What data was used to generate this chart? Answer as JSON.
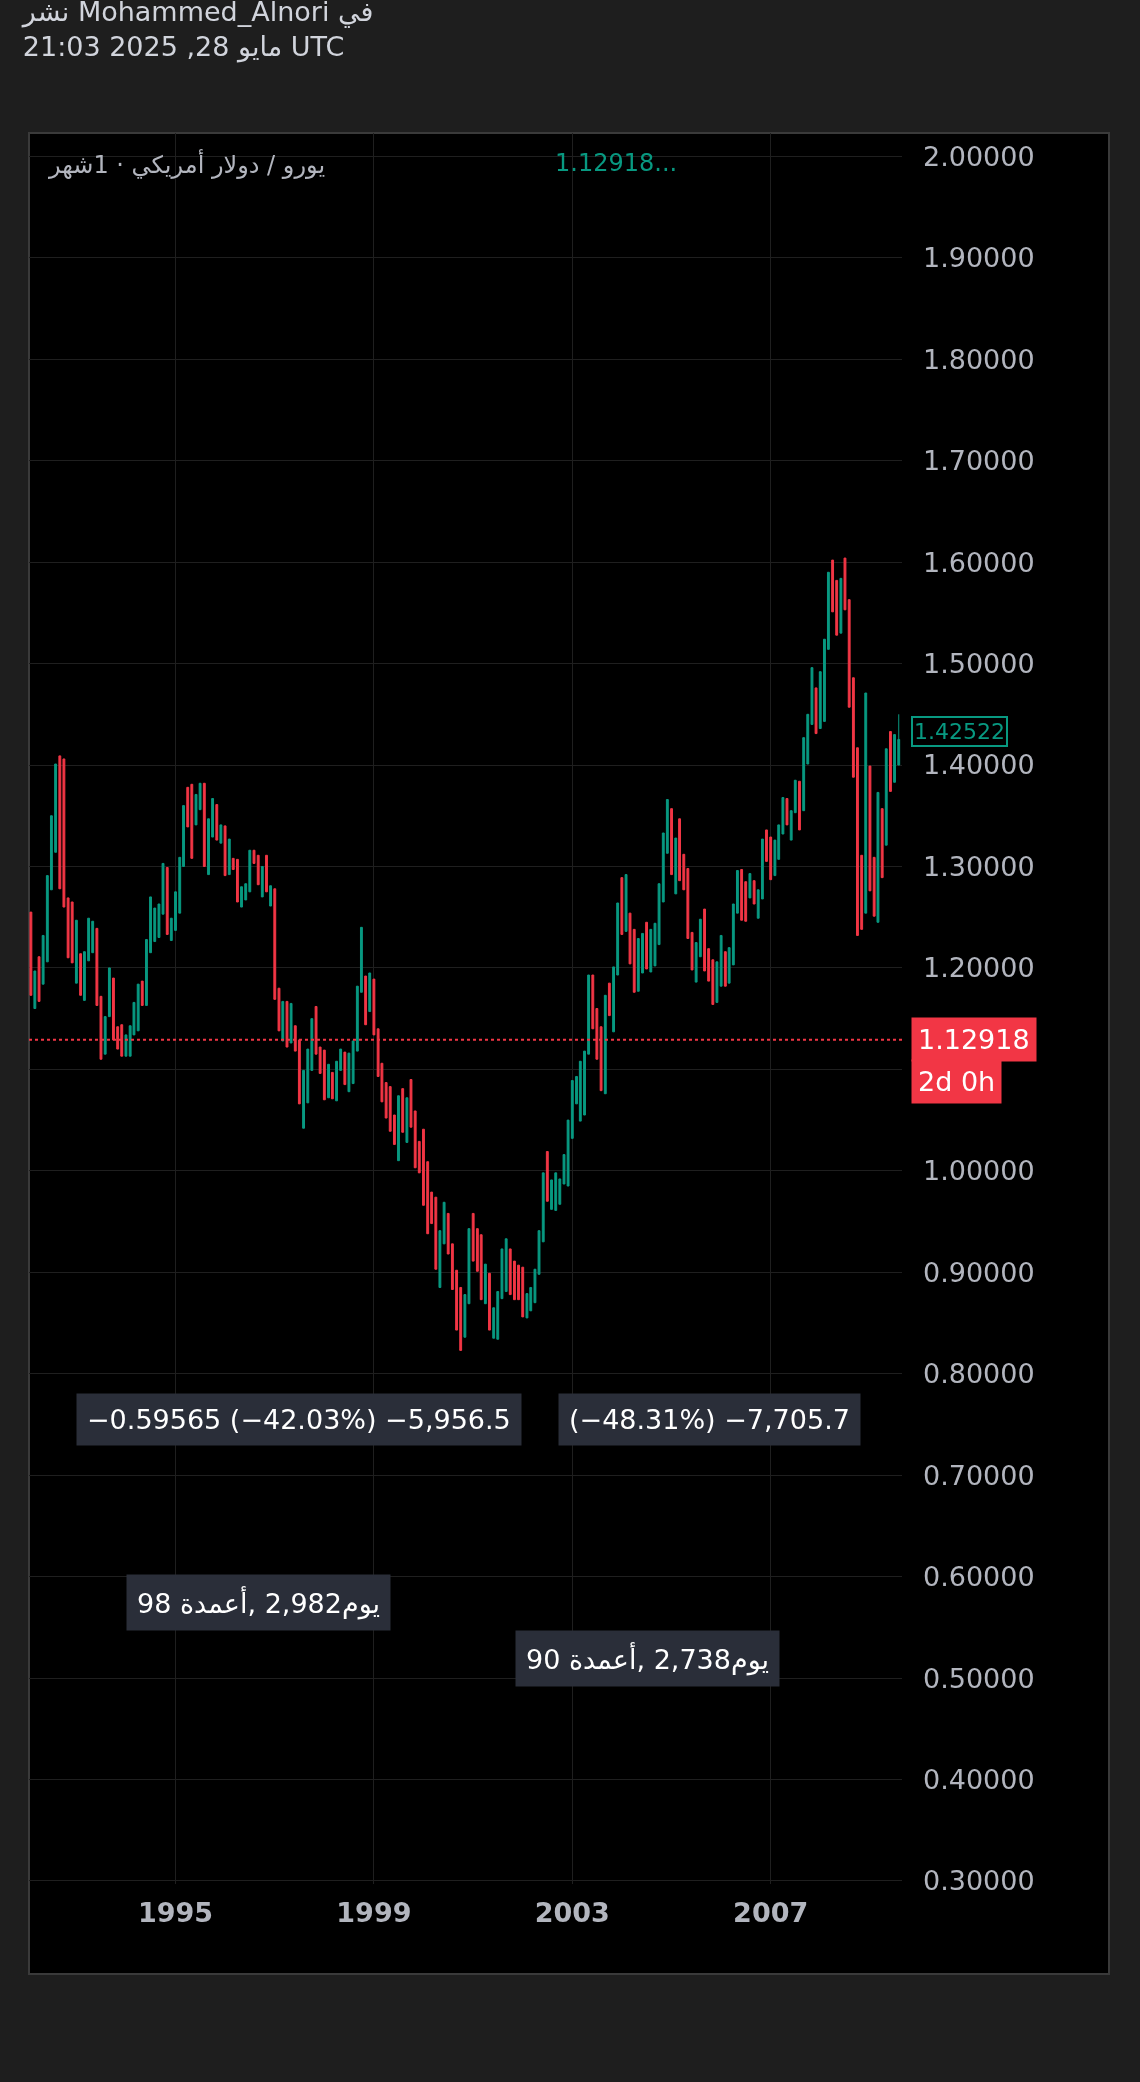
{
  "chart_data": {
    "type": "candlestick",
    "title": "نشر Mohammed_Alnori في",
    "subtitle": "21:03 2025 ,28 مايو UTC",
    "colors": [
      "#f23645",
      "#089981",
      "#f23645",
      "#089981",
      "#089981",
      "#089981",
      "#089981",
      "#f23645",
      "#f23645",
      "#f23645",
      "#f23645",
      "#089981",
      "#f23645",
      "#089981",
      "#089981",
      "#089981",
      "#f23645",
      "#f23645",
      "#089981",
      "#089981",
      "#f23645",
      "#f23645",
      "#f23645",
      "#089981",
      "#089981",
      "#089981",
      "#089981",
      "#f23645",
      "#089981",
      "#089981",
      "#089981",
      "#089981",
      "#089981",
      "#f23645",
      "#089981",
      "#089981",
      "#089981",
      "#089981",
      "#f23645",
      "#f23645",
      "#089981",
      "#089981",
      "#f23645",
      "#089981",
      "#089981",
      "#f23645",
      "#089981",
      "#f23645",
      "#089981",
      "#f23645",
      "#f23645",
      "#089981",
      "#089981",
      "#089981",
      "#f23645",
      "#f23645",
      "#089981",
      "#f23645",
      "#089981",
      "#f23645",
      "#f23645",
      "#089981",
      "#f23645",
      "#089981",
      "#f23645",
      "#f23645",
      "#089981",
      "#089981",
      "#089981",
      "#f23645",
      "#f23645",
      "#f23645",
      "#089981",
      "#f23645",
      "#089981",
      "#089981",
      "#f23645",
      "#089981",
      "#089981",
      "#089981",
      "#089981",
      "#f23645",
      "#089981",
      "#f23645",
      "#f23645",
      "#f23645",
      "#f23645",
      "#f23645",
      "#f23645",
      "#089981",
      "#f23645",
      "#089981",
      "#f23645",
      "#f23645",
      "#f23645",
      "#f23645",
      "#f23645",
      "#f23645",
      "#f23645",
      "#089981",
      "#089981",
      "#f23645",
      "#f23645",
      "#f23645",
      "#f23645",
      "#089981",
      "#089981",
      "#f23645",
      "#f23645",
      "#f23645",
      "#089981",
      "#f23645",
      "#089981",
      "#089981",
      "#089981",
      "#089981",
      "#f23645",
      "#f23645",
      "#f23645",
      "#f23645",
      "#089981",
      "#089981",
      "#089981",
      "#089981",
      "#089981",
      "#f23645",
      "#089981",
      "#089981",
      "#089981",
      "#089981",
      "#089981",
      "#089981",
      "#089981",
      "#089981",
      "#089981",
      "#089981",
      "#f23645",
      "#f23645",
      "#f23645",
      "#089981",
      "#f23645",
      "#089981",
      "#089981",
      "#f23645",
      "#089981",
      "#f23645",
      "#f23645",
      "#089981",
      "#089981",
      "#f23645",
      "#089981",
      "#089981",
      "#089981",
      "#089981",
      "#089981",
      "#f23645",
      "#089981",
      "#f23645",
      "#f23645",
      "#f23645",
      "#f23645",
      "#089981",
      "#089981",
      "#f23645",
      "#f23645",
      "#f23645",
      "#089981",
      "#089981",
      "#f23645",
      "#089981",
      "#089981",
      "#089981",
      "#f23645",
      "#f23645",
      "#089981",
      "#f23645",
      "#089981",
      "#089981",
      "#f23645",
      "#f23645",
      "#089981",
      "#089981",
      "#089981",
      "#f23645",
      "#089981",
      "#089981",
      "#f23645",
      "#089981",
      "#089981",
      "#089981",
      "#f23645",
      "#089981",
      "#089981",
      "#089981",
      "#f23645",
      "#f23645",
      "#089981",
      "#f23645",
      "#f23645",
      "#f23645",
      "#f23645",
      "#f23645",
      "#089981",
      "#f23645",
      "#f23645",
      "#089981",
      "#f23645",
      "#089981",
      "#f23645",
      "#089981",
      "#089981"
    ],
    "x": [
      "1992-02",
      "1992-03",
      "1992-04",
      "1992-05",
      "1992-06",
      "1992-07",
      "1992-08",
      "1992-09",
      "1992-10",
      "1992-11",
      "1992-12",
      "1993-01",
      "1993-02",
      "1993-03",
      "1993-04",
      "1993-05",
      "1993-06",
      "1993-07",
      "1993-08",
      "1993-09",
      "1993-10",
      "1993-11",
      "1993-12",
      "1994-01",
      "1994-02",
      "1994-03",
      "1994-04",
      "1994-05",
      "1994-06",
      "1994-07",
      "1994-08",
      "1994-09",
      "1994-10",
      "1994-11",
      "1994-12",
      "1995-01",
      "1995-02",
      "1995-03",
      "1995-04",
      "1995-05",
      "1995-06",
      "1995-07",
      "1995-08",
      "1995-09",
      "1995-10",
      "1995-11",
      "1995-12",
      "1996-01",
      "1996-02",
      "1996-03",
      "1996-04",
      "1996-05",
      "1996-06",
      "1996-07",
      "1996-08",
      "1996-09",
      "1996-10",
      "1996-11",
      "1996-12",
      "1997-01",
      "1997-02",
      "1997-03",
      "1997-04",
      "1997-05",
      "1997-06",
      "1997-07",
      "1997-08",
      "1997-09",
      "1997-10",
      "1997-11",
      "1997-12",
      "1998-01",
      "1998-02",
      "1998-03",
      "1998-04",
      "1998-05",
      "1998-06",
      "1998-07",
      "1998-08",
      "1998-09",
      "1998-10",
      "1998-11",
      "1998-12",
      "1999-01",
      "1999-02",
      "1999-03",
      "1999-04",
      "1999-05",
      "1999-06",
      "1999-07",
      "1999-08",
      "1999-09",
      "1999-10",
      "1999-11",
      "1999-12",
      "2000-01",
      "2000-02",
      "2000-03",
      "2000-04",
      "2000-05",
      "2000-06",
      "2000-07",
      "2000-08",
      "2000-09",
      "2000-10",
      "2000-11",
      "2000-12",
      "2001-01",
      "2001-02",
      "2001-03",
      "2001-04",
      "2001-05",
      "2001-06",
      "2001-07",
      "2001-08",
      "2001-09",
      "2001-10",
      "2001-11",
      "2001-12",
      "2002-01",
      "2002-02",
      "2002-03",
      "2002-04",
      "2002-05",
      "2002-06",
      "2002-07",
      "2002-08",
      "2002-09",
      "2002-10",
      "2002-11",
      "2002-12",
      "2003-01",
      "2003-02",
      "2003-03",
      "2003-04",
      "2003-05",
      "2003-06",
      "2003-07",
      "2003-08",
      "2003-09",
      "2003-10",
      "2003-11",
      "2003-12",
      "2004-01",
      "2004-02",
      "2004-03",
      "2004-04",
      "2004-05",
      "2004-06",
      "2004-07",
      "2004-08",
      "2004-09",
      "2004-10",
      "2004-11",
      "2004-12",
      "2005-01",
      "2005-02",
      "2005-03",
      "2005-04",
      "2005-05",
      "2005-06",
      "2005-07",
      "2005-08",
      "2005-09",
      "2005-10",
      "2005-11",
      "2005-12",
      "2006-01",
      "2006-02",
      "2006-03",
      "2006-04",
      "2006-05",
      "2006-06",
      "2006-07",
      "2006-08",
      "2006-09",
      "2006-10",
      "2006-11",
      "2006-12",
      "2007-01",
      "2007-02",
      "2007-03",
      "2007-04",
      "2007-05",
      "2007-06",
      "2007-07",
      "2007-08",
      "2007-09",
      "2007-10",
      "2007-11",
      "2007-12",
      "2008-01",
      "2008-02",
      "2008-03",
      "2008-04",
      "2008-05",
      "2008-06",
      "2008-07",
      "2008-08",
      "2008-09",
      "2008-10",
      "2008-11",
      "2008-12",
      "2009-01",
      "2009-02",
      "2009-03",
      "2009-04",
      "2009-05",
      "2009-06",
      "2009-07",
      "2009-08"
    ],
    "ohlc": [
      [
        1.255,
        1.255,
        1.173,
        1.173
      ],
      [
        1.16,
        1.197,
        1.16,
        1.197
      ],
      [
        1.211,
        1.211,
        1.167,
        1.167
      ],
      [
        1.184,
        1.232,
        1.184,
        1.232
      ],
      [
        1.206,
        1.291,
        1.206,
        1.291
      ],
      [
        1.277,
        1.35,
        1.277,
        1.35
      ],
      [
        1.314,
        1.401,
        1.314,
        1.401
      ],
      [
        1.409,
        1.409,
        1.278,
        1.278
      ],
      [
        1.406,
        1.406,
        1.26,
        1.26
      ],
      [
        1.269,
        1.269,
        1.21,
        1.21
      ],
      [
        1.265,
        1.265,
        1.205,
        1.205
      ],
      [
        1.185,
        1.247,
        1.185,
        1.247
      ],
      [
        1.214,
        1.214,
        1.173,
        1.173
      ],
      [
        1.168,
        1.216,
        1.168,
        1.216
      ],
      [
        1.207,
        1.249,
        1.207,
        1.249
      ],
      [
        1.215,
        1.246,
        1.215,
        1.246
      ],
      [
        1.239,
        1.239,
        1.163,
        1.163
      ],
      [
        1.172,
        1.172,
        1.11,
        1.11
      ],
      [
        1.115,
        1.152,
        1.115,
        1.152
      ],
      [
        1.152,
        1.2,
        1.152,
        1.2
      ],
      [
        1.19,
        1.19,
        1.129,
        1.129
      ],
      [
        1.142,
        1.142,
        1.12,
        1.12
      ],
      [
        1.144,
        1.144,
        1.113,
        1.113
      ],
      [
        1.113,
        1.134,
        1.113,
        1.134
      ],
      [
        1.113,
        1.143,
        1.113,
        1.143
      ],
      [
        1.134,
        1.166,
        1.134,
        1.166
      ],
      [
        1.138,
        1.184,
        1.138,
        1.184
      ],
      [
        1.187,
        1.187,
        1.163,
        1.163
      ],
      [
        1.163,
        1.228,
        1.163,
        1.228
      ],
      [
        1.215,
        1.27,
        1.215,
        1.27
      ],
      [
        1.226,
        1.259,
        1.226,
        1.259
      ],
      [
        1.23,
        1.263,
        1.23,
        1.263
      ],
      [
        1.253,
        1.303,
        1.253,
        1.303
      ],
      [
        1.299,
        1.299,
        1.233,
        1.233
      ],
      [
        1.227,
        1.249,
        1.227,
        1.249
      ],
      [
        1.237,
        1.275,
        1.237,
        1.275
      ],
      [
        1.254,
        1.309,
        1.254,
        1.309
      ],
      [
        1.3,
        1.36,
        1.3,
        1.36
      ],
      [
        1.378,
        1.378,
        1.339,
        1.339
      ],
      [
        1.381,
        1.381,
        1.308,
        1.308
      ],
      [
        1.341,
        1.371,
        1.341,
        1.371
      ],
      [
        1.356,
        1.382,
        1.356,
        1.382
      ],
      [
        1.382,
        1.382,
        1.3,
        1.3
      ],
      [
        1.292,
        1.347,
        1.292,
        1.347
      ],
      [
        1.329,
        1.367,
        1.329,
        1.367
      ],
      [
        1.361,
        1.361,
        1.326,
        1.326
      ],
      [
        1.323,
        1.341,
        1.323,
        1.341
      ],
      [
        1.34,
        1.34,
        1.291,
        1.291
      ],
      [
        1.292,
        1.327,
        1.292,
        1.327
      ],
      [
        1.308,
        1.308,
        1.297,
        1.297
      ],
      [
        1.307,
        1.307,
        1.265,
        1.265
      ],
      [
        1.26,
        1.28,
        1.26,
        1.28
      ],
      [
        1.267,
        1.283,
        1.267,
        1.283
      ],
      [
        1.275,
        1.316,
        1.275,
        1.316
      ],
      [
        1.316,
        1.316,
        1.303,
        1.303
      ],
      [
        1.311,
        1.311,
        1.282,
        1.282
      ],
      [
        1.27,
        1.3,
        1.27,
        1.3
      ],
      [
        1.311,
        1.311,
        1.275,
        1.275
      ],
      [
        1.261,
        1.281,
        1.261,
        1.281
      ],
      [
        1.278,
        1.278,
        1.169,
        1.169
      ],
      [
        1.18,
        1.18,
        1.138,
        1.138
      ],
      [
        1.128,
        1.167,
        1.128,
        1.167
      ],
      [
        1.167,
        1.167,
        1.122,
        1.122
      ],
      [
        1.126,
        1.165,
        1.126,
        1.165
      ],
      [
        1.143,
        1.143,
        1.118,
        1.118
      ],
      [
        1.129,
        1.129,
        1.066,
        1.066
      ],
      [
        1.042,
        1.099,
        1.042,
        1.099
      ],
      [
        1.067,
        1.12,
        1.067,
        1.12
      ],
      [
        1.099,
        1.15,
        1.099,
        1.15
      ],
      [
        1.162,
        1.162,
        1.115,
        1.115
      ],
      [
        1.122,
        1.122,
        1.096,
        1.096
      ],
      [
        1.119,
        1.119,
        1.07,
        1.07
      ],
      [
        1.072,
        1.105,
        1.072,
        1.105
      ],
      [
        1.097,
        1.097,
        1.071,
        1.071
      ],
      [
        1.069,
        1.108,
        1.069,
        1.108
      ],
      [
        1.099,
        1.12,
        1.099,
        1.12
      ],
      [
        1.117,
        1.117,
        1.085,
        1.085
      ],
      [
        1.078,
        1.116,
        1.078,
        1.116
      ],
      [
        1.086,
        1.128,
        1.086,
        1.128
      ],
      [
        1.118,
        1.182,
        1.118,
        1.182
      ],
      [
        1.176,
        1.24,
        1.176,
        1.24
      ],
      [
        1.192,
        1.192,
        1.144,
        1.144
      ],
      [
        1.157,
        1.195,
        1.157,
        1.195
      ],
      [
        1.189,
        1.189,
        1.134,
        1.134
      ],
      [
        1.14,
        1.14,
        1.093,
        1.093
      ],
      [
        1.106,
        1.106,
        1.068,
        1.068
      ],
      [
        1.087,
        1.087,
        1.052,
        1.052
      ],
      [
        1.083,
        1.083,
        1.039,
        1.039
      ],
      [
        1.055,
        1.055,
        1.026,
        1.026
      ],
      [
        1.01,
        1.074,
        1.01,
        1.074
      ],
      [
        1.081,
        1.081,
        1.038,
        1.038
      ],
      [
        1.028,
        1.072,
        1.028,
        1.072
      ],
      [
        1.09,
        1.09,
        1.043,
        1.043
      ],
      [
        1.059,
        1.059,
        1.003,
        1.003
      ],
      [
        1.029,
        1.029,
        0.998,
        0.998
      ],
      [
        1.041,
        1.041,
        0.966,
        0.966
      ],
      [
        1.009,
        1.009,
        0.938,
        0.938
      ],
      [
        0.979,
        0.979,
        0.948,
        0.948
      ],
      [
        0.974,
        0.974,
        0.903,
        0.903
      ],
      [
        0.885,
        0.941,
        0.885,
        0.941
      ],
      [
        0.928,
        0.969,
        0.928,
        0.969
      ],
      [
        0.958,
        0.958,
        0.918,
        0.918
      ],
      [
        0.928,
        0.928,
        0.883,
        0.883
      ],
      [
        0.902,
        0.902,
        0.843,
        0.843
      ],
      [
        0.885,
        0.885,
        0.823,
        0.823
      ],
      [
        0.836,
        0.878,
        0.836,
        0.878
      ],
      [
        0.869,
        0.943,
        0.869,
        0.943
      ],
      [
        0.958,
        0.958,
        0.911,
        0.911
      ],
      [
        0.943,
        0.943,
        0.901,
        0.901
      ],
      [
        0.937,
        0.937,
        0.873,
        0.873
      ],
      [
        0.869,
        0.908,
        0.869,
        0.908
      ],
      [
        0.899,
        0.899,
        0.843,
        0.843
      ],
      [
        0.835,
        0.865,
        0.835,
        0.865
      ],
      [
        0.834,
        0.881,
        0.834,
        0.881
      ],
      [
        0.874,
        0.923,
        0.874,
        0.923
      ],
      [
        0.881,
        0.933,
        0.881,
        0.933
      ],
      [
        0.923,
        0.923,
        0.878,
        0.878
      ],
      [
        0.911,
        0.911,
        0.873,
        0.873
      ],
      [
        0.907,
        0.907,
        0.873,
        0.873
      ],
      [
        0.905,
        0.905,
        0.856,
        0.856
      ],
      [
        0.855,
        0.879,
        0.855,
        0.879
      ],
      [
        0.862,
        0.885,
        0.862,
        0.885
      ],
      [
        0.87,
        0.903,
        0.87,
        0.903
      ],
      [
        0.898,
        0.941,
        0.898,
        0.941
      ],
      [
        0.93,
        0.998,
        0.93,
        0.998
      ],
      [
        1.019,
        1.019,
        0.97,
        0.97
      ],
      [
        0.962,
        0.991,
        0.962,
        0.991
      ],
      [
        0.961,
        0.998,
        0.961,
        0.998
      ],
      [
        0.967,
        0.992,
        0.967,
        0.992
      ],
      [
        0.987,
        1.016,
        0.987,
        1.016
      ],
      [
        0.985,
        1.05,
        0.985,
        1.05
      ],
      [
        1.032,
        1.089,
        1.032,
        1.089
      ],
      [
        1.066,
        1.093,
        1.066,
        1.093
      ],
      [
        1.049,
        1.108,
        1.049,
        1.108
      ],
      [
        1.055,
        1.118,
        1.055,
        1.118
      ],
      [
        1.115,
        1.193,
        1.115,
        1.193
      ],
      [
        1.193,
        1.193,
        1.14,
        1.14
      ],
      [
        1.16,
        1.16,
        1.11,
        1.11
      ],
      [
        1.142,
        1.142,
        1.079,
        1.079
      ],
      [
        1.076,
        1.173,
        1.076,
        1.173
      ],
      [
        1.185,
        1.185,
        1.153,
        1.153
      ],
      [
        1.137,
        1.201,
        1.137,
        1.201
      ],
      [
        1.193,
        1.264,
        1.193,
        1.264
      ],
      [
        1.289,
        1.289,
        1.233,
        1.233
      ],
      [
        1.236,
        1.292,
        1.236,
        1.292
      ],
      [
        1.254,
        1.254,
        1.204,
        1.204
      ],
      [
        1.238,
        1.238,
        1.176,
        1.176
      ],
      [
        1.177,
        1.229,
        1.177,
        1.229
      ],
      [
        1.195,
        1.234,
        1.195,
        1.234
      ],
      [
        1.245,
        1.245,
        1.199,
        1.199
      ],
      [
        1.196,
        1.238,
        1.196,
        1.238
      ],
      [
        1.202,
        1.244,
        1.202,
        1.244
      ],
      [
        1.223,
        1.283,
        1.223,
        1.283
      ],
      [
        1.265,
        1.333,
        1.265,
        1.333
      ],
      [
        1.313,
        1.366,
        1.313,
        1.366
      ],
      [
        1.357,
        1.357,
        1.292,
        1.292
      ],
      [
        1.273,
        1.328,
        1.273,
        1.328
      ],
      [
        1.347,
        1.347,
        1.286,
        1.286
      ],
      [
        1.312,
        1.312,
        1.277,
        1.277
      ],
      [
        1.298,
        1.298,
        1.229,
        1.229
      ],
      [
        1.235,
        1.235,
        1.198,
        1.198
      ],
      [
        1.186,
        1.225,
        1.186,
        1.225
      ],
      [
        1.211,
        1.248,
        1.211,
        1.248
      ],
      [
        1.258,
        1.258,
        1.197,
        1.197
      ],
      [
        1.219,
        1.219,
        1.187,
        1.187
      ],
      [
        1.208,
        1.208,
        1.164,
        1.164
      ],
      [
        1.166,
        1.206,
        1.166,
        1.206
      ],
      [
        1.182,
        1.232,
        1.182,
        1.232
      ],
      [
        1.216,
        1.216,
        1.182,
        1.182
      ],
      [
        1.185,
        1.22,
        1.185,
        1.22
      ],
      [
        1.203,
        1.263,
        1.203,
        1.263
      ],
      [
        1.254,
        1.296,
        1.254,
        1.296
      ],
      [
        1.297,
        1.297,
        1.247,
        1.247
      ],
      [
        1.285,
        1.285,
        1.246,
        1.246
      ],
      [
        1.269,
        1.293,
        1.269,
        1.293
      ],
      [
        1.286,
        1.286,
        1.263,
        1.263
      ],
      [
        1.249,
        1.277,
        1.249,
        1.277
      ],
      [
        1.268,
        1.327,
        1.268,
        1.327
      ],
      [
        1.336,
        1.336,
        1.305,
        1.305
      ],
      [
        1.329,
        1.329,
        1.287,
        1.287
      ],
      [
        1.291,
        1.326,
        1.291,
        1.326
      ],
      [
        1.307,
        1.341,
        1.307,
        1.341
      ],
      [
        1.332,
        1.368,
        1.332,
        1.368
      ],
      [
        1.367,
        1.367,
        1.341,
        1.341
      ],
      [
        1.326,
        1.355,
        1.326,
        1.355
      ],
      [
        1.353,
        1.385,
        1.353,
        1.385
      ],
      [
        1.384,
        1.384,
        1.336,
        1.336
      ],
      [
        1.355,
        1.427,
        1.355,
        1.427
      ],
      [
        1.401,
        1.45,
        1.401,
        1.45
      ],
      [
        1.44,
        1.496,
        1.44,
        1.496
      ],
      [
        1.476,
        1.476,
        1.431,
        1.431
      ],
      [
        1.436,
        1.492,
        1.436,
        1.492
      ],
      [
        1.443,
        1.524,
        1.443,
        1.524
      ],
      [
        1.514,
        1.59,
        1.514,
        1.59
      ],
      [
        1.602,
        1.602,
        1.551,
        1.551
      ],
      [
        1.582,
        1.582,
        1.528,
        1.528
      ],
      [
        1.53,
        1.584,
        1.53,
        1.584
      ],
      [
        1.604,
        1.604,
        1.553,
        1.553
      ],
      [
        1.563,
        1.563,
        1.457,
        1.457
      ],
      [
        1.486,
        1.486,
        1.388,
        1.388
      ],
      [
        1.417,
        1.417,
        1.232,
        1.232
      ],
      [
        1.311,
        1.311,
        1.238,
        1.238
      ],
      [
        1.254,
        1.471,
        1.254,
        1.471
      ],
      [
        1.399,
        1.399,
        1.276,
        1.276
      ],
      [
        1.309,
        1.309,
        1.251,
        1.251
      ],
      [
        1.245,
        1.373,
        1.245,
        1.373
      ],
      [
        1.357,
        1.357,
        1.289,
        1.289
      ],
      [
        1.321,
        1.416,
        1.321,
        1.416
      ],
      [
        1.433,
        1.433,
        1.374,
        1.374
      ],
      [
        1.383,
        1.43,
        1.383,
        1.43
      ],
      [
        1.4,
        1.45,
        1.4,
        1.42522
      ]
    ],
    "xlim": [
      "1992-01-18",
      "2009-08-25"
    ],
    "xticks": [
      "1995",
      "1999",
      "2003",
      "2007"
    ],
    "ylim": [
      0.297,
      2.023
    ],
    "yticks": [
      {
        "value": 0.3,
        "label": "0.30000"
      },
      {
        "value": 0.4,
        "label": "0.40000"
      },
      {
        "value": 0.5,
        "label": "0.50000"
      },
      {
        "value": 0.6,
        "label": "0.60000"
      },
      {
        "value": 0.7,
        "label": "0.70000"
      },
      {
        "value": 0.8,
        "label": "0.80000"
      },
      {
        "value": 0.9,
        "label": "0.90000"
      },
      {
        "value": 1.0,
        "label": "1.00000"
      },
      {
        "value": 1.1,
        "label": null
      },
      {
        "value": 1.2,
        "label": "1.20000"
      },
      {
        "value": 1.3,
        "label": "1.30000"
      },
      {
        "value": 1.4,
        "label": "1.40000"
      },
      {
        "value": 1.5,
        "label": "1.50000"
      },
      {
        "value": 1.6,
        "label": "1.60000"
      },
      {
        "value": 1.7,
        "label": "1.70000"
      },
      {
        "value": 1.8,
        "label": "1.80000"
      },
      {
        "value": 1.9,
        "label": "1.90000"
      },
      {
        "value": 2.0,
        "label": "2.00000"
      }
    ],
    "grid": true,
    "ref_lines": [
      {
        "axis": "y",
        "value": 1.12918,
        "label": "1.12918",
        "color": "#f23645",
        "line_style": "dotted"
      }
    ],
    "annotations": [
      "يورو / دولار أمريكي · 1شهر",
      "1.12918...",
      "2d 0h",
      "1.42522",
      "−0.59565 (−42.03%) −5,956.5",
      "(−48.31%) −7,705.7",
      "يوم2,982 ,أعمدة 98",
      "يوم2,738 ,أعمدة 90"
    ]
  }
}
